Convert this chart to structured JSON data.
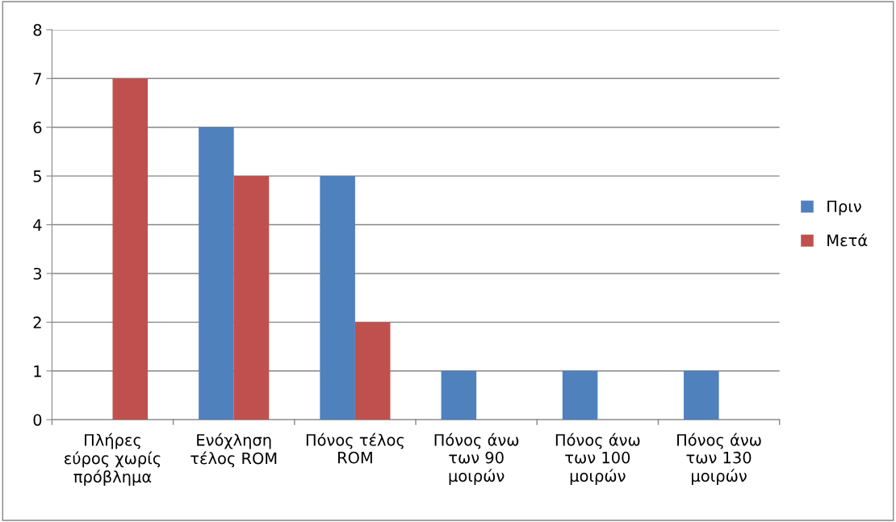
{
  "chart_data": {
    "type": "bar",
    "categories": [
      "Πλήρες\nεύρος χωρίς\nπρόβλημα",
      "Ενόχληση\nτέλος ROM",
      "Πόνος τέλος\nROM",
      "Πόνος άνω\nτων 90\nμοιρών",
      "Πόνος άνω\nτων 100\nμοιρών",
      "Πόνος άνω\nτων 130\nμοιρών"
    ],
    "series": [
      {
        "name": "Πριν",
        "color": "#4f81bd",
        "values": [
          0,
          6,
          5,
          1,
          1,
          1
        ]
      },
      {
        "name": "Μετά",
        "color": "#c0504d",
        "values": [
          7,
          5,
          2,
          0,
          0,
          0
        ]
      }
    ],
    "ylim": [
      0,
      8
    ],
    "yticks": [
      0,
      1,
      2,
      3,
      4,
      5,
      6,
      7,
      8
    ],
    "grid": "y",
    "legend": "right"
  }
}
